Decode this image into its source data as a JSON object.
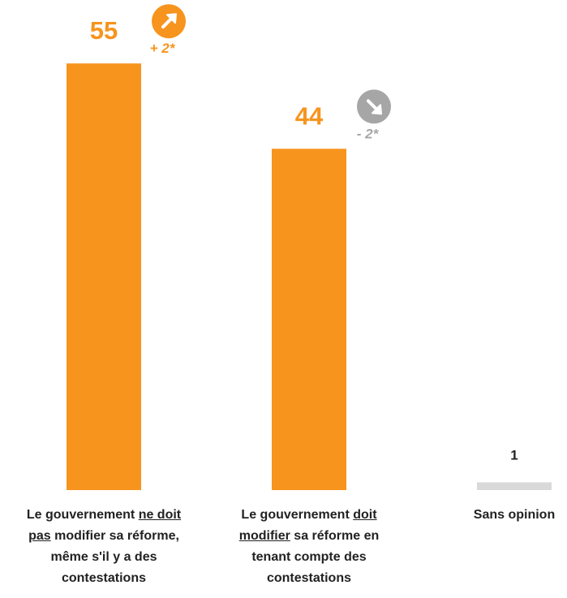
{
  "chart_data": {
    "type": "bar",
    "categories": [
      "Le gouvernement ne doit pas modifier sa réforme, même s'il y a des contestations",
      "Le gouvernement doit modifier sa réforme en tenant compte des contestations",
      "Sans opinion"
    ],
    "category_underline": [
      "ne doit pas",
      "doit modifier",
      null
    ],
    "values": [
      55,
      44,
      1
    ],
    "colors": [
      "#f7941d",
      "#f7941d",
      "#d9d9d9"
    ],
    "value_label_colors": [
      "#f7941d",
      "#f7941d",
      "#222222"
    ],
    "changes": [
      2,
      -2,
      null
    ],
    "change_labels": [
      "+ 2*",
      "- 2*",
      null
    ],
    "change_colors": {
      "up": "#f7941d",
      "down": "#a6a6a6"
    }
  }
}
